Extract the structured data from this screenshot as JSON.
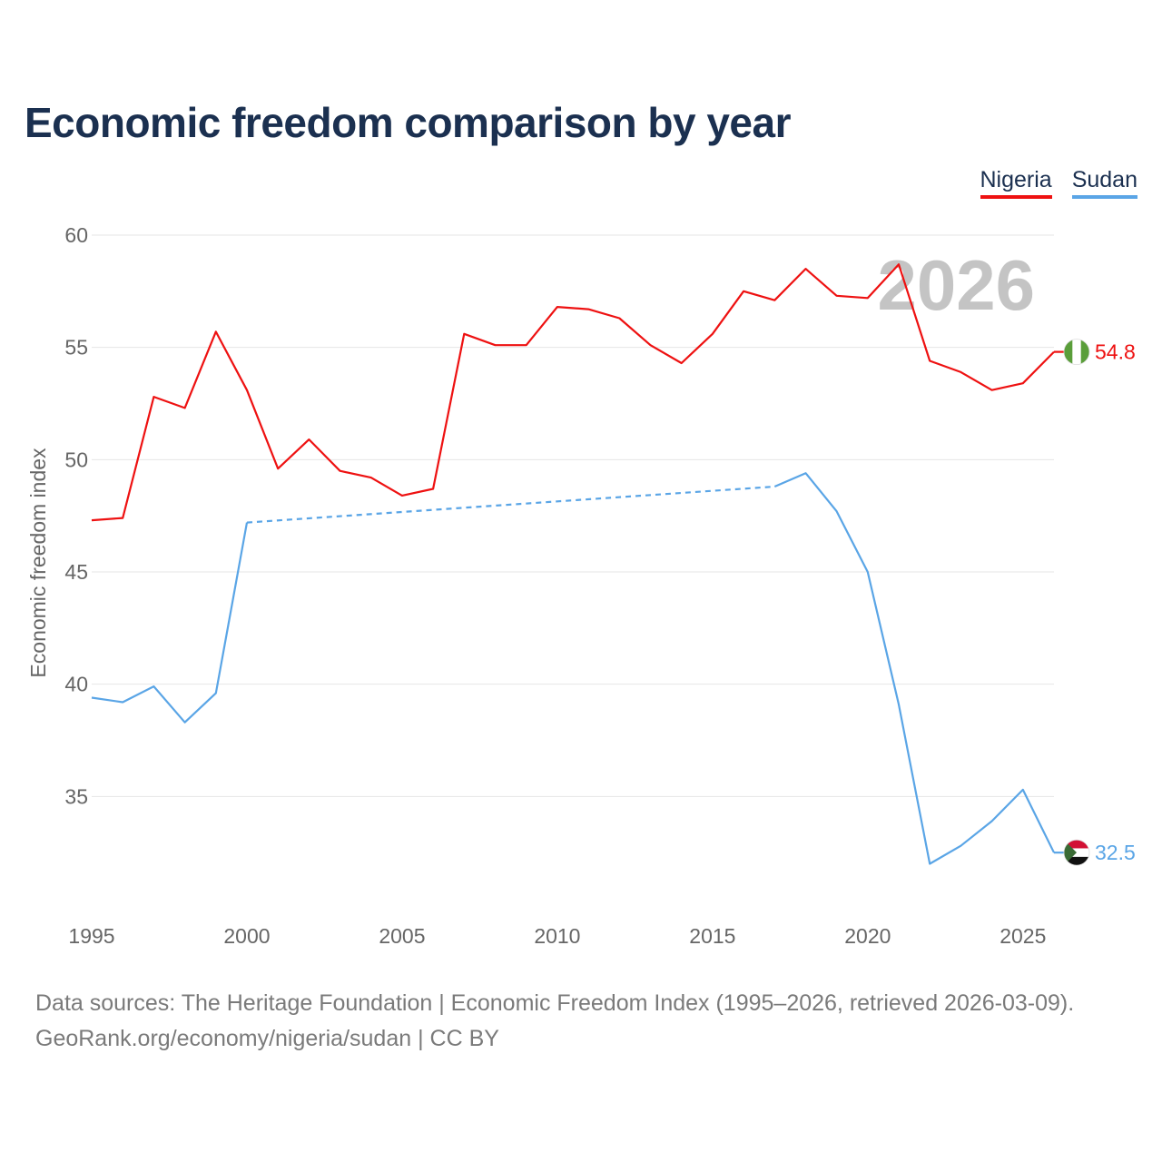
{
  "title": "Economic freedom comparison by year",
  "legend": [
    {
      "label": "Nigeria",
      "color": "#ee1111"
    },
    {
      "label": "Sudan",
      "color": "#5aa5e6"
    }
  ],
  "year_watermark": "2026",
  "footer": {
    "line1": "Data sources: The Heritage Foundation | Economic Freedom Index (1995–2026, retrieved 2026-03-09).",
    "line2": "GeoRank.org/economy/nigeria/sudan | CC BY"
  },
  "chart_data": {
    "type": "line",
    "title": "Economic freedom comparison by year",
    "xlabel": "",
    "ylabel": "Economic freedom index",
    "xlim": [
      1995,
      2026
    ],
    "ylim": [
      30,
      60
    ],
    "x_ticks": [
      1995,
      2000,
      2005,
      2010,
      2015,
      2020,
      2025
    ],
    "y_ticks": [
      35,
      40,
      45,
      50,
      55,
      60
    ],
    "grid": true,
    "legend_position": "top-right",
    "series": [
      {
        "name": "Nigeria",
        "color": "#ee1111",
        "flag": "nigeria-flag",
        "end_label": "54.8",
        "gap_after": null,
        "points": [
          [
            1995,
            47.3
          ],
          [
            1996,
            47.4
          ],
          [
            1997,
            52.8
          ],
          [
            1998,
            52.3
          ],
          [
            1999,
            55.7
          ],
          [
            2000,
            53.1
          ],
          [
            2001,
            49.6
          ],
          [
            2002,
            50.9
          ],
          [
            2003,
            49.5
          ],
          [
            2004,
            49.2
          ],
          [
            2005,
            48.4
          ],
          [
            2006,
            48.7
          ],
          [
            2007,
            55.6
          ],
          [
            2008,
            55.1
          ],
          [
            2009,
            55.1
          ],
          [
            2010,
            56.8
          ],
          [
            2011,
            56.7
          ],
          [
            2012,
            56.3
          ],
          [
            2013,
            55.1
          ],
          [
            2014,
            54.3
          ],
          [
            2015,
            55.6
          ],
          [
            2016,
            57.5
          ],
          [
            2017,
            57.1
          ],
          [
            2018,
            58.5
          ],
          [
            2019,
            57.3
          ],
          [
            2020,
            57.2
          ],
          [
            2021,
            58.7
          ],
          [
            2022,
            54.4
          ],
          [
            2023,
            53.9
          ],
          [
            2024,
            53.1
          ],
          [
            2025,
            53.4
          ],
          [
            2026,
            54.8
          ]
        ]
      },
      {
        "name": "Sudan",
        "color": "#5aa5e6",
        "flag": "sudan-flag",
        "end_label": "32.5",
        "gap_after": 2000,
        "points": [
          [
            1995,
            39.4
          ],
          [
            1996,
            39.2
          ],
          [
            1997,
            39.9
          ],
          [
            1998,
            38.3
          ],
          [
            1999,
            39.6
          ],
          [
            2000,
            47.2
          ],
          [
            2017,
            48.8
          ],
          [
            2018,
            49.4
          ],
          [
            2019,
            47.7
          ],
          [
            2020,
            45.0
          ],
          [
            2021,
            39.1
          ],
          [
            2022,
            32.0
          ],
          [
            2023,
            32.8
          ],
          [
            2024,
            33.9
          ],
          [
            2025,
            35.3
          ],
          [
            2026,
            32.5
          ]
        ]
      }
    ]
  }
}
